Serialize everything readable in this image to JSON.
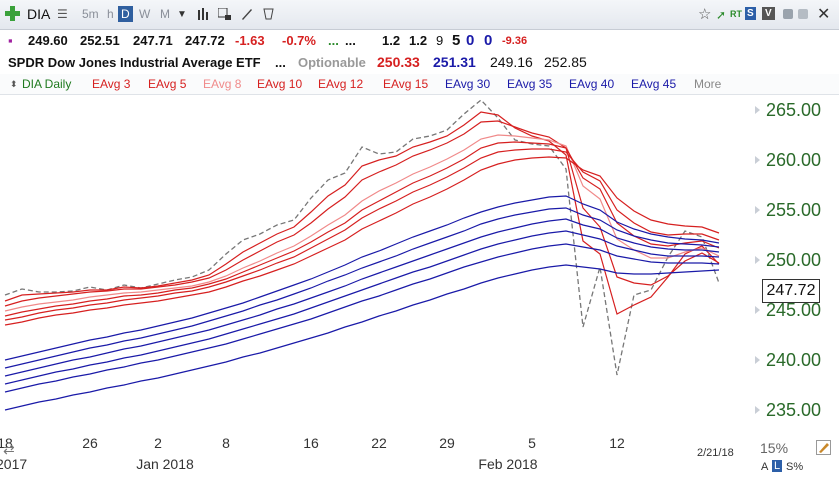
{
  "toolbar": {
    "symbol": "DIA",
    "timeframes": [
      "5m",
      "h",
      "D",
      "W",
      "M"
    ],
    "active_timeframe": "D",
    "rt_label": "RT",
    "s_label": "S",
    "v_label": "V"
  },
  "quote": {
    "open": "249.60",
    "high": "252.51",
    "low": "247.71",
    "last": "247.72",
    "change": "-1.63",
    "change_pct": "-0.7%",
    "dots_green": "...",
    "dots_black": "...",
    "val1": "1.2",
    "val2": "1.2",
    "val3": "9",
    "val4": "5",
    "val5": "0",
    "val6": "0",
    "val7": "-9.36"
  },
  "security": {
    "name": "SPDR Dow Jones Industrial Average ETF",
    "dots": "...",
    "optionable": "Optionable",
    "bid": "250.33",
    "ask": "251.31",
    "low": "249.16",
    "prev": "252.85"
  },
  "legend": {
    "items": [
      {
        "label": "DIA Daily",
        "color": "#1f7a1f"
      },
      {
        "label": "EAvg 3",
        "color": "#d62020"
      },
      {
        "label": "EAvg 5",
        "color": "#d62020"
      },
      {
        "label": "EAvg 8",
        "color": "#f08a8a"
      },
      {
        "label": "EAvg 10",
        "color": "#d62020"
      },
      {
        "label": "EAvg 12",
        "color": "#d62020"
      },
      {
        "label": "EAvg 15",
        "color": "#d62020"
      },
      {
        "label": "EAvg 30",
        "color": "#1a1aa8"
      },
      {
        "label": "EAvg 35",
        "color": "#1a1aa8"
      },
      {
        "label": "EAvg 40",
        "color": "#1a1aa8"
      },
      {
        "label": "EAvg 45",
        "color": "#1a1aa8"
      },
      {
        "label": "More",
        "color": "#888888"
      }
    ]
  },
  "chart_data": {
    "type": "line",
    "x_ticks": [
      "18",
      "26",
      "2",
      "8",
      "16",
      "22",
      "29",
      "5",
      "12"
    ],
    "x_month_labels": [
      "2017",
      "Jan 2018",
      "Feb 2018"
    ],
    "y_ticks": [
      "265.00",
      "260.00",
      "255.00",
      "250.00",
      "245.00",
      "240.00",
      "235.00"
    ],
    "ylim": [
      233.5,
      266.5
    ],
    "current_price_label": "247.72",
    "date_label": "2/21/18",
    "zoom_label": "15%",
    "bottom_labels": [
      "A",
      "L",
      "S%"
    ],
    "n_bars": 43,
    "x_tick_index": [
      0,
      5,
      9,
      13,
      18,
      22,
      26,
      31,
      36
    ],
    "series": [
      {
        "style": "price",
        "color": "#777777",
        "values": [
          246.5,
          247.1,
          246.8,
          246.8,
          246.9,
          247.3,
          247.0,
          247.5,
          247.2,
          247.6,
          248.0,
          248.3,
          249.0,
          250.6,
          252.0,
          252.6,
          253.5,
          254.0,
          256.2,
          258.0,
          258.7,
          261.3,
          260.6,
          260.8,
          262.1,
          262.4,
          263.0,
          264.6,
          266.0,
          264.2,
          262.0,
          261.6,
          261.4,
          259.1,
          243.3,
          249.3,
          238.5,
          246.5,
          247.0,
          250.3,
          252.9,
          252.3,
          247.7
        ]
      },
      {
        "style": "ema",
        "color": "#d62020",
        "values": [
          245.9,
          246.5,
          246.6,
          246.7,
          246.8,
          247.0,
          247.0,
          247.3,
          247.2,
          247.4,
          247.7,
          248.0,
          248.5,
          249.6,
          250.8,
          251.7,
          252.6,
          253.3,
          254.8,
          256.4,
          257.5,
          259.4,
          260.0,
          260.4,
          261.3,
          261.8,
          262.4,
          263.5,
          264.8,
          264.5,
          263.2,
          262.4,
          261.9,
          260.5,
          251.9,
          250.6,
          244.6,
          245.5,
          246.3,
          248.3,
          250.6,
          251.4,
          249.6
        ]
      },
      {
        "style": "ema",
        "color": "#d62020",
        "values": [
          245.4,
          245.9,
          246.2,
          246.4,
          246.6,
          246.8,
          246.9,
          247.1,
          247.1,
          247.3,
          247.5,
          247.8,
          248.2,
          249.0,
          250.0,
          250.9,
          251.8,
          252.5,
          253.7,
          255.1,
          256.3,
          258.0,
          258.8,
          259.5,
          260.4,
          261.0,
          261.7,
          262.6,
          263.8,
          263.9,
          263.3,
          262.7,
          262.3,
          261.2,
          255.2,
          253.3,
          248.3,
          247.7,
          247.5,
          248.4,
          249.9,
          250.7,
          249.7
        ]
      },
      {
        "style": "ema",
        "color": "#f08a8a",
        "values": [
          244.9,
          245.3,
          245.6,
          245.8,
          246.0,
          246.3,
          246.5,
          246.7,
          246.8,
          247.0,
          247.2,
          247.4,
          247.8,
          248.4,
          249.2,
          249.9,
          250.7,
          251.4,
          252.4,
          253.5,
          254.5,
          255.9,
          256.9,
          257.7,
          258.6,
          259.3,
          260.1,
          261.0,
          262.1,
          262.5,
          262.4,
          262.2,
          262.0,
          261.4,
          257.4,
          256.1,
          252.1,
          251.0,
          250.2,
          250.2,
          250.8,
          251.2,
          250.4
        ]
      },
      {
        "style": "ema",
        "color": "#d62020",
        "values": [
          244.4,
          244.8,
          245.1,
          245.4,
          245.6,
          245.9,
          246.1,
          246.4,
          246.5,
          246.7,
          247.0,
          247.2,
          247.6,
          248.1,
          248.8,
          249.5,
          250.2,
          250.9,
          251.8,
          252.8,
          253.7,
          255.0,
          255.9,
          256.8,
          257.7,
          258.4,
          259.2,
          260.1,
          261.2,
          261.7,
          261.8,
          261.7,
          261.6,
          261.2,
          258.2,
          257.1,
          253.7,
          252.4,
          251.6,
          251.4,
          251.7,
          251.9,
          251.2
        ]
      },
      {
        "style": "ema",
        "color": "#d62020",
        "values": [
          244.0,
          244.3,
          244.7,
          245.0,
          245.2,
          245.5,
          245.7,
          246.0,
          246.2,
          246.4,
          246.7,
          246.9,
          247.3,
          247.8,
          248.4,
          249.0,
          249.7,
          250.3,
          251.2,
          252.1,
          253.0,
          254.2,
          255.1,
          255.9,
          256.8,
          257.5,
          258.3,
          259.2,
          260.2,
          260.8,
          261.0,
          261.1,
          261.1,
          260.8,
          258.8,
          257.9,
          255.0,
          253.7,
          252.8,
          252.5,
          252.6,
          252.6,
          252.0
        ]
      },
      {
        "style": "ema",
        "color": "#d62020",
        "values": [
          243.5,
          243.8,
          244.2,
          244.5,
          244.7,
          245.0,
          245.2,
          245.5,
          245.7,
          245.9,
          246.2,
          246.5,
          246.8,
          247.3,
          247.9,
          248.4,
          249.0,
          249.6,
          250.4,
          251.2,
          252.0,
          253.1,
          253.9,
          254.7,
          255.6,
          256.3,
          257.1,
          258.0,
          259.0,
          259.6,
          260.0,
          260.2,
          260.3,
          260.2,
          259.0,
          258.4,
          256.2,
          254.9,
          254.0,
          253.6,
          253.4,
          253.3,
          252.7
        ]
      },
      {
        "style": "ema",
        "color": "#1a1aa8",
        "values": [
          240.0,
          240.4,
          240.8,
          241.2,
          241.6,
          242.0,
          242.3,
          242.7,
          243.0,
          243.4,
          243.8,
          244.2,
          244.7,
          245.2,
          245.7,
          246.3,
          246.9,
          247.5,
          248.1,
          248.8,
          249.5,
          250.3,
          250.9,
          251.6,
          252.3,
          252.9,
          253.5,
          254.2,
          254.8,
          255.3,
          255.7,
          256.0,
          256.3,
          256.4,
          255.6,
          255.0,
          253.8,
          253.1,
          252.6,
          252.3,
          252.1,
          252.0,
          251.7
        ]
      },
      {
        "style": "ema",
        "color": "#1a1aa8",
        "values": [
          239.2,
          239.6,
          240.0,
          240.4,
          240.8,
          241.2,
          241.5,
          241.9,
          242.2,
          242.6,
          243.0,
          243.4,
          243.9,
          244.4,
          244.9,
          245.5,
          246.0,
          246.6,
          247.2,
          247.9,
          248.5,
          249.2,
          249.8,
          250.4,
          251.1,
          251.7,
          252.3,
          252.9,
          253.6,
          254.1,
          254.5,
          254.8,
          255.1,
          255.2,
          254.5,
          254.0,
          253.0,
          252.4,
          252.0,
          251.7,
          251.6,
          251.5,
          251.3
        ]
      },
      {
        "style": "ema",
        "color": "#1a1aa8",
        "values": [
          238.4,
          238.8,
          239.2,
          239.6,
          240.0,
          240.3,
          240.7,
          241.1,
          241.4,
          241.8,
          242.2,
          242.6,
          243.0,
          243.5,
          244.0,
          244.5,
          245.1,
          245.6,
          246.2,
          246.8,
          247.4,
          248.1,
          248.7,
          249.3,
          249.9,
          250.5,
          251.1,
          251.7,
          252.3,
          252.8,
          253.2,
          253.6,
          253.9,
          254.1,
          253.5,
          253.1,
          252.2,
          251.7,
          251.3,
          251.1,
          251.0,
          251.0,
          250.8
        ]
      },
      {
        "style": "ema",
        "color": "#1a1aa8",
        "values": [
          237.6,
          238.0,
          238.4,
          238.8,
          239.1,
          239.5,
          239.8,
          240.2,
          240.5,
          240.9,
          241.3,
          241.7,
          242.1,
          242.6,
          243.1,
          243.6,
          244.1,
          244.6,
          245.2,
          245.8,
          246.4,
          247.0,
          247.6,
          248.2,
          248.8,
          249.3,
          249.9,
          250.5,
          251.1,
          251.6,
          252.0,
          252.4,
          252.7,
          252.9,
          252.5,
          252.1,
          251.4,
          251.0,
          250.6,
          250.4,
          250.4,
          250.4,
          250.3
        ]
      },
      {
        "style": "ema",
        "color": "#1a1aa8",
        "values": [
          236.8,
          237.2,
          237.6,
          237.9,
          238.3,
          238.6,
          239.0,
          239.3,
          239.7,
          240.0,
          240.4,
          240.8,
          241.2,
          241.6,
          242.1,
          242.6,
          243.1,
          243.6,
          244.1,
          244.7,
          245.3,
          245.9,
          246.4,
          247.0,
          247.6,
          248.1,
          248.7,
          249.3,
          249.8,
          250.3,
          250.7,
          251.1,
          251.4,
          251.6,
          251.3,
          251.0,
          250.4,
          250.1,
          249.8,
          249.7,
          249.7,
          249.7,
          249.6
        ]
      },
      {
        "style": "ema",
        "color": "#1a1aa8",
        "values": [
          235.0,
          235.4,
          235.8,
          236.1,
          236.5,
          236.8,
          237.2,
          237.5,
          237.9,
          238.2,
          238.6,
          239.0,
          239.4,
          239.8,
          240.3,
          240.7,
          241.2,
          241.7,
          242.2,
          242.7,
          243.3,
          243.8,
          244.4,
          244.9,
          245.5,
          246.0,
          246.6,
          247.1,
          247.7,
          248.2,
          248.6,
          249.0,
          249.3,
          249.5,
          249.3,
          249.1,
          248.7,
          248.6,
          248.6,
          248.7,
          248.8,
          248.9,
          249.0
        ]
      }
    ]
  }
}
